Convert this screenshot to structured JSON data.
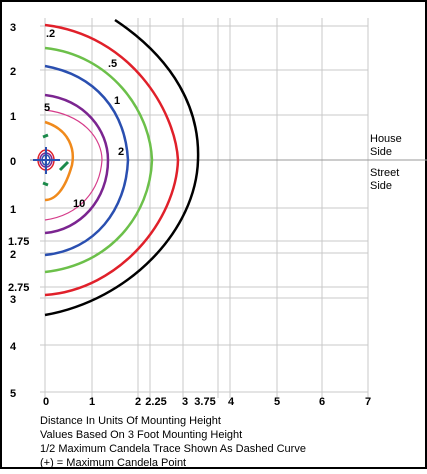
{
  "y_axis_labels": [
    "3",
    "2",
    "1",
    "0",
    "1",
    "1.75",
    "2",
    "2.75",
    "3",
    "4",
    "5"
  ],
  "x_axis_labels": [
    "0",
    "1",
    "2",
    "2.25",
    "3",
    "3.75",
    "4",
    "5",
    "6",
    "7"
  ],
  "contour_labels": [
    ".2",
    ".5",
    "1",
    "2",
    "5",
    "10"
  ],
  "side_labels": {
    "house": [
      "House",
      "Side"
    ],
    "street": [
      "Street",
      "Side"
    ]
  },
  "notes": [
    "Distance In Units Of Mounting Height",
    "Values Based On 3 Foot Mounting Height",
    "1/2 Maximum Candela Trace Shown As Dashed Curve",
    "(+) = Maximum Candela Point"
  ]
}
